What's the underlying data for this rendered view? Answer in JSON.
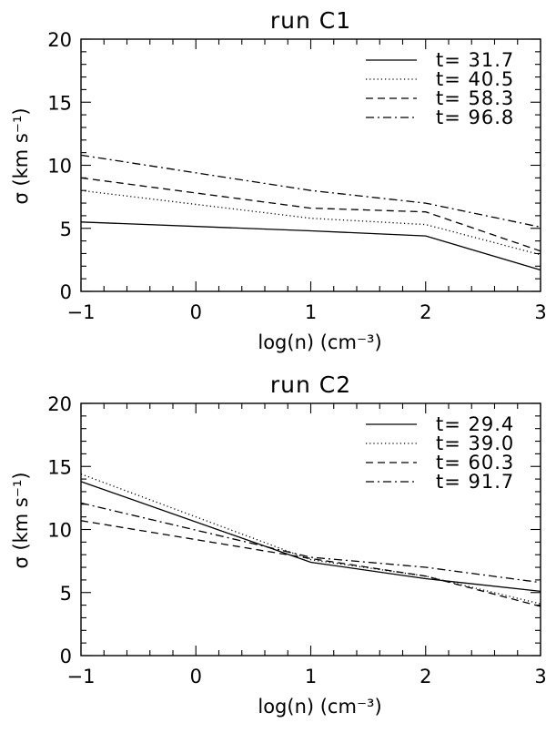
{
  "chart_data": [
    {
      "type": "line",
      "title": "run C1",
      "xlabel": "log(n) (cm⁻³)",
      "ylabel": "σ (km s⁻¹)",
      "xlim": [
        -1,
        3
      ],
      "ylim": [
        0,
        20
      ],
      "xticks": [
        "−1",
        "0",
        "1",
        "2",
        "3"
      ],
      "yticks": [
        "0",
        "5",
        "10",
        "15",
        "20"
      ],
      "x": [
        -1,
        1,
        2,
        3
      ],
      "legend_position": "top-right",
      "series": [
        {
          "name": "t= 31.7",
          "style": "solid",
          "values": [
            5.5,
            4.8,
            4.4,
            1.7
          ]
        },
        {
          "name": "t= 40.5",
          "style": "dotted",
          "values": [
            8.0,
            5.8,
            5.3,
            2.9
          ]
        },
        {
          "name": "t= 58.3",
          "style": "dashed",
          "values": [
            9.0,
            6.6,
            6.3,
            3.2
          ]
        },
        {
          "name": "t= 96.8",
          "style": "dashdot",
          "values": [
            10.8,
            8.0,
            7.0,
            5.1
          ]
        }
      ]
    },
    {
      "type": "line",
      "title": "run C2",
      "xlabel": "log(n) (cm⁻³)",
      "ylabel": "σ (km s⁻¹)",
      "xlim": [
        -1,
        3
      ],
      "ylim": [
        0,
        20
      ],
      "xticks": [
        "−1",
        "0",
        "1",
        "2",
        "3"
      ],
      "yticks": [
        "0",
        "5",
        "10",
        "15",
        "20"
      ],
      "x": [
        -1,
        1,
        2,
        3
      ],
      "legend_position": "top-right",
      "series": [
        {
          "name": "t= 29.4",
          "style": "solid",
          "values": [
            13.8,
            7.4,
            6.1,
            5.1
          ]
        },
        {
          "name": "t= 39.0",
          "style": "dotted",
          "values": [
            14.4,
            7.6,
            6.3,
            4.1
          ]
        },
        {
          "name": "t= 60.3",
          "style": "dashed",
          "values": [
            10.7,
            7.7,
            6.3,
            3.9
          ]
        },
        {
          "name": "t= 91.7",
          "style": "dashdot",
          "values": [
            12.1,
            7.8,
            7.0,
            5.8
          ]
        }
      ]
    }
  ]
}
